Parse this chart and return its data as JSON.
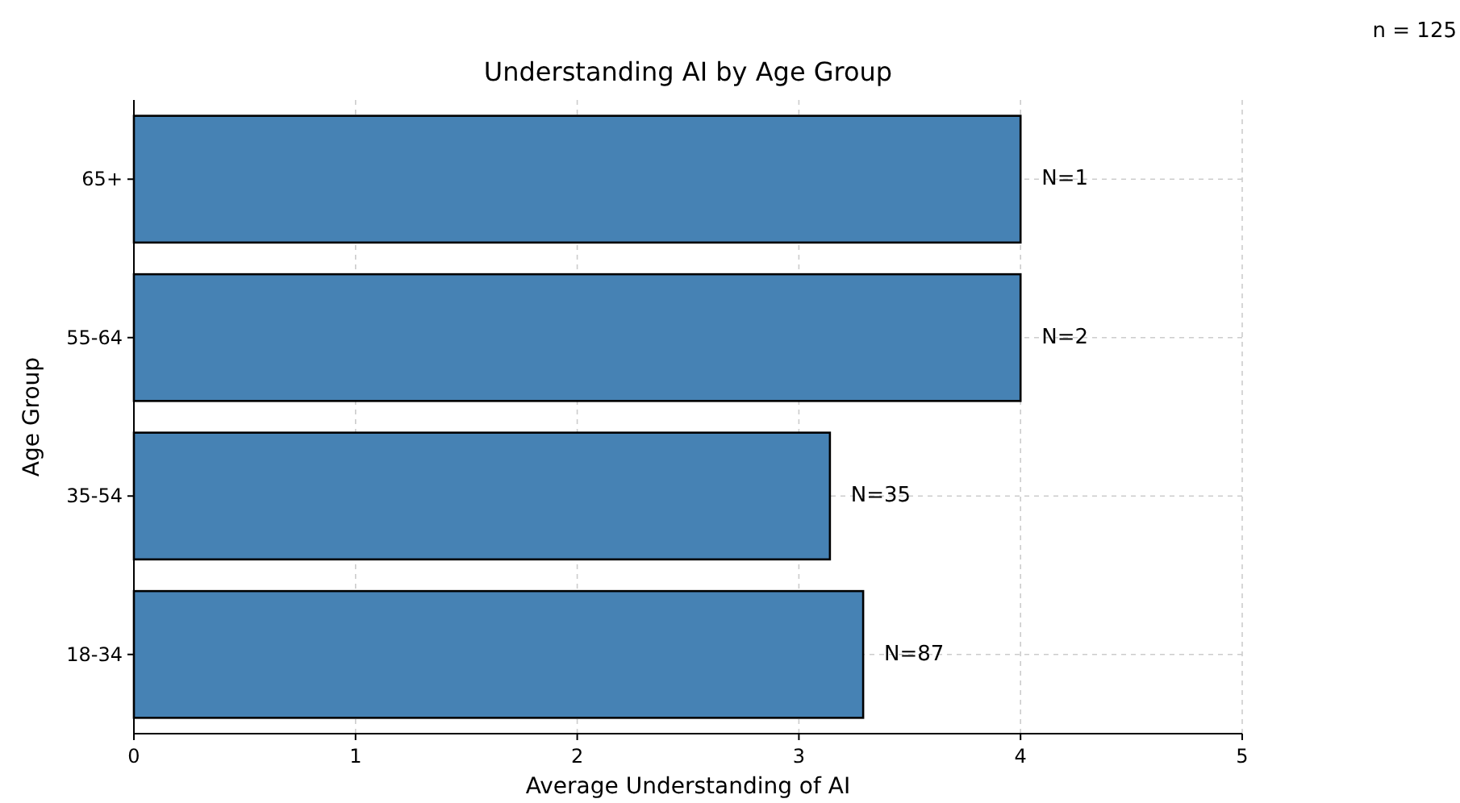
{
  "chart_data": {
    "type": "bar",
    "orientation": "horizontal",
    "title": "Understanding AI by Age Group",
    "xlabel": "Average Understanding of AI",
    "ylabel": "Age Group",
    "categories": [
      "65+",
      "55-64",
      "35-54",
      "18-34"
    ],
    "values": [
      4.0,
      4.0,
      3.14,
      3.29
    ],
    "color": "#4682b4",
    "xlim": [
      0,
      5
    ],
    "xticks": [
      0,
      1,
      2,
      3,
      4,
      5
    ],
    "grid": true,
    "annotations": [
      "n = 125",
      {
        "text": "N=1",
        "x": 4.0,
        "y": "65+"
      },
      {
        "text": "N=2",
        "x": 4.0,
        "y": "55-64"
      },
      {
        "text": "N=35",
        "x": 3.14,
        "y": "35-54"
      },
      {
        "text": "N=87",
        "x": 3.29,
        "y": "18-34"
      }
    ]
  }
}
